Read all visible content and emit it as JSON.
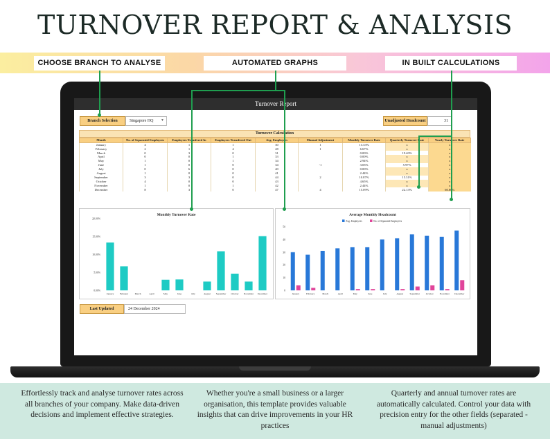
{
  "hero_title": "TURNOVER REPORT & ANALYSIS",
  "callouts": {
    "branch": "CHOOSE BRANCH TO ANALYSE",
    "graphs": "AUTOMATED GRAPHS",
    "calcs": "IN BUILT CALCULATIONS"
  },
  "report": {
    "title": "Turnover Report",
    "branch_label": "Branch Selection",
    "branch_value": "Singapore HQ",
    "headcount_label": "Unadjusted Headcount",
    "headcount_value": "31",
    "calc_title": "Turnover Calculation",
    "columns": [
      "Month",
      "No. of Separated Employees",
      "Employees Transfered In",
      "Employees Transfered Out",
      "Avg. Employees",
      "Manual Adjustment",
      "Monthly Turnover Rate",
      "Quarterly Turnover Rate",
      "Yearly Turnover Rate"
    ],
    "rows": [
      [
        "January",
        "4",
        "1",
        "1",
        "30",
        "1",
        "13.33%",
        "x",
        "x"
      ],
      [
        "February",
        "2",
        "1",
        "4",
        "28",
        "1",
        "6.67%",
        "x",
        "x"
      ],
      [
        "March",
        "0",
        "3",
        "0",
        "31",
        "",
        "0.00%",
        "19.40%",
        "x"
      ],
      [
        "April",
        "0",
        "0",
        "1",
        "33",
        "",
        "0.00%",
        "x",
        "x"
      ],
      [
        "May",
        "1",
        "0",
        "1",
        "34",
        "",
        "2.94%",
        "x",
        "x"
      ],
      [
        "June",
        "1",
        "0",
        "0",
        "34",
        "-1",
        "3.03%",
        "5.97%",
        "x"
      ],
      [
        "July",
        "0",
        "6",
        "0",
        "40",
        "",
        "0.00%",
        "x",
        "x"
      ],
      [
        "August",
        "1",
        "0",
        "0",
        "41",
        "",
        "2.44%",
        "x",
        "x"
      ],
      [
        "September",
        "3",
        "3",
        "0",
        "44",
        "2",
        "10.87%",
        "15.31%",
        "x"
      ],
      [
        "October",
        "4",
        "0",
        "0",
        "43",
        "",
        "4.65%",
        "x",
        "x"
      ],
      [
        "November",
        "1",
        "0",
        "1",
        "42",
        "",
        "2.44%",
        "x",
        "x"
      ],
      [
        "December",
        "8",
        "3",
        "0",
        "47",
        "4",
        "15.09%",
        "22.13%",
        "60.80%"
      ]
    ],
    "last_updated_label": "Last Updated",
    "last_updated_value": "24 December 2024"
  },
  "blurbs": [
    "Effortlessly track and analyse turnover rates across all branches of your company. Make data-driven decisions and implement effective strategies.",
    "Whether you're a small business or a larger organisation, this template provides valuable insights that can drive improvements in your HR practices",
    "Quarterly and annual turnover rates are automatically calculated. Control your data with precision entry for the other fields (separated - manual adjustments)"
  ],
  "colors": {
    "accent_orange": "#f9cf82",
    "teal_bar": "#1ecbc4",
    "blue_bar": "#2878d8",
    "pink_bar": "#e0449a",
    "connector_green": "#1f9e4f",
    "blurb_bg": "#cfe9e0"
  },
  "chart_data": [
    {
      "type": "bar",
      "title": "Monthly Turnover Rate",
      "categories": [
        "January",
        "February",
        "March",
        "April",
        "May",
        "June",
        "July",
        "August",
        "September",
        "October",
        "November",
        "December"
      ],
      "values": [
        13.33,
        6.67,
        0,
        0,
        2.94,
        3.03,
        0,
        2.44,
        10.87,
        4.65,
        2.44,
        15.09
      ],
      "ylim": [
        0,
        20
      ],
      "yticks": [
        "0.00%",
        "5.00%",
        "10.00%",
        "15.00%",
        "20.00%"
      ],
      "color": "#1ecbc4"
    },
    {
      "type": "bar",
      "title": "Average Monthly Headcount",
      "categories": [
        "January",
        "February",
        "March",
        "April",
        "May",
        "June",
        "July",
        "August",
        "September",
        "October",
        "November",
        "December"
      ],
      "series": [
        {
          "name": "Avg. Employees",
          "values": [
            30,
            28,
            31,
            33,
            34,
            34,
            40,
            41,
            44,
            43,
            42,
            47
          ],
          "color": "#2878d8"
        },
        {
          "name": "No. of Separated Employees",
          "values": [
            4,
            2,
            0,
            0,
            1,
            1,
            0,
            1,
            3,
            4,
            1,
            8
          ],
          "color": "#e0449a"
        }
      ],
      "ylim": [
        0,
        50
      ],
      "yticks": [
        "0",
        "10",
        "20",
        "30",
        "40",
        "50"
      ]
    }
  ]
}
